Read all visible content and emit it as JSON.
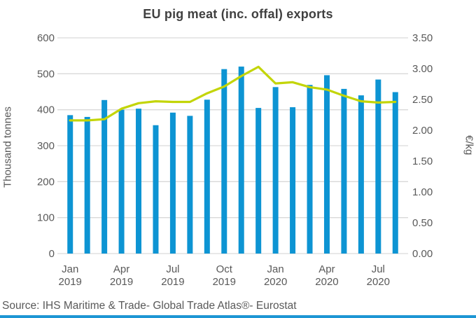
{
  "title": "EU pig meat (inc. offal) exports",
  "source": {
    "text": "Source: IHS Maritime & Trade- Global Trade Atlas®- Eurostat"
  },
  "colors": {
    "bar": "#0d94d3",
    "line": "#c3d508",
    "grid": "#d9d9d9",
    "axis_text": "#595959",
    "title_text": "#404040",
    "bottom_accent": "#1d96d4"
  },
  "chart_data": {
    "type": "bar",
    "title": "EU pig meat (inc. offal) exports",
    "legend": "none",
    "grid": "horizontal",
    "categories": [
      "Jan 2019",
      "Feb 2019",
      "Mar 2019",
      "Apr 2019",
      "May 2019",
      "Jun 2019",
      "Jul 2019",
      "Aug 2019",
      "Sep 2019",
      "Oct 2019",
      "Nov 2019",
      "Dec 2019",
      "Jan 2020",
      "Feb 2020",
      "Mar 2020",
      "Apr 2020",
      "May 2020",
      "Jun 2020",
      "Jul 2020",
      "Aug 2020"
    ],
    "series": [
      {
        "type": "bar",
        "axis": "left",
        "values": [
          385,
          380,
          427,
          400,
          403,
          357,
          392,
          383,
          428,
          513,
          520,
          405,
          463,
          407,
          469,
          496,
          458,
          440,
          484,
          449
        ]
      },
      {
        "type": "line",
        "axis": "right",
        "values": [
          2.16,
          2.16,
          2.18,
          2.35,
          2.44,
          2.47,
          2.46,
          2.46,
          2.6,
          2.71,
          2.88,
          3.03,
          2.76,
          2.78,
          2.7,
          2.66,
          2.56,
          2.47,
          2.45,
          2.46
        ]
      }
    ],
    "left_axis": {
      "label": "Thousand tonnes",
      "min": 0,
      "max": 600,
      "step": 100,
      "decimals": 0
    },
    "right_axis": {
      "label": "€/kg",
      "min": 0,
      "max": 3.5,
      "step": 0.5,
      "decimals": 2
    },
    "x_ticks": [
      {
        "i": 0,
        "top": "Jan",
        "bottom": "2019"
      },
      {
        "i": 3,
        "top": "Apr",
        "bottom": "2019"
      },
      {
        "i": 6,
        "top": "Jul",
        "bottom": "2019"
      },
      {
        "i": 9,
        "top": "Oct",
        "bottom": "2019"
      },
      {
        "i": 12,
        "top": "Jan",
        "bottom": "2020"
      },
      {
        "i": 15,
        "top": "Apr",
        "bottom": "2020"
      },
      {
        "i": 18,
        "top": "Jul",
        "bottom": "2020"
      }
    ]
  }
}
